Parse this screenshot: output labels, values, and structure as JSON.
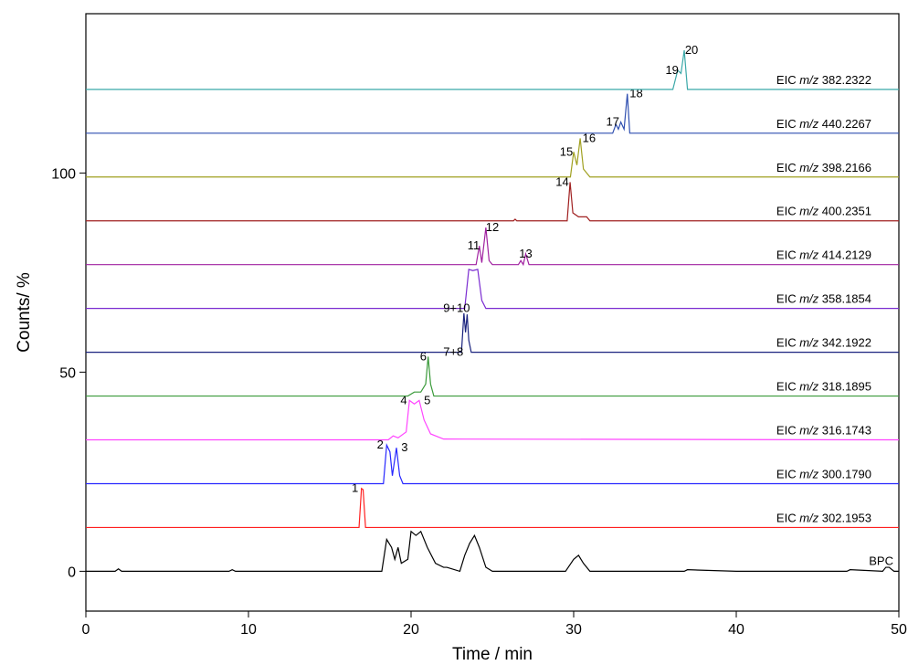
{
  "chart_data": {
    "type": "line",
    "xlabel": "Time / min",
    "ylabel": "Counts/ %",
    "xlim": [
      0,
      50
    ],
    "ylim": [
      -10,
      140
    ],
    "xticks": [
      0,
      10,
      20,
      30,
      40,
      50
    ],
    "yticks": [
      0,
      50,
      100
    ],
    "series": [
      {
        "name": "BPC",
        "color": "#000000",
        "x": [
          0,
          1.8,
          2,
          2.2,
          8.8,
          9,
          9.2,
          18.2,
          18.5,
          18.8,
          19.0,
          19.2,
          19.4,
          19.8,
          20.0,
          20.3,
          20.6,
          21,
          21.5,
          22,
          22.2,
          23,
          23.3,
          23.6,
          23.9,
          24.2,
          24.6,
          25,
          29.5,
          30,
          30.3,
          30.6,
          31,
          36.8,
          37,
          40,
          46.8,
          47,
          49,
          49.2,
          49.4,
          49.7,
          50
        ],
        "values": [
          0,
          0,
          0.6,
          0,
          0,
          0.4,
          0,
          0,
          8,
          6,
          3,
          6,
          2,
          3,
          10,
          9,
          10,
          6,
          2,
          1,
          1,
          0,
          4,
          7,
          9,
          6,
          1,
          0,
          0,
          3,
          4,
          2,
          0,
          0,
          0.4,
          0,
          0,
          0.4,
          0,
          1,
          1,
          0,
          0
        ],
        "peaks": []
      },
      {
        "name": "EIC m/z 302.1953",
        "color": "#ff2020",
        "x": [
          0,
          16.8,
          16.95,
          17.05,
          17.2,
          50
        ],
        "values": [
          11,
          11,
          20.8,
          20.5,
          11,
          11
        ],
        "peaks": [
          {
            "text": "1",
            "x": 16.55
          }
        ]
      },
      {
        "name": "EIC m/z 300.1790",
        "color": "#2828ff",
        "x": [
          0,
          18.3,
          18.5,
          18.7,
          18.85,
          19.1,
          19.3,
          19.5,
          50
        ],
        "values": [
          22,
          22,
          31.7,
          30,
          24,
          31,
          24,
          22,
          22
        ],
        "peaks": [
          {
            "text": "2",
            "x": 18.1
          },
          {
            "text": "3",
            "x": 19.6
          }
        ]
      },
      {
        "name": "EIC m/z 316.1743",
        "color": "#ff44ff",
        "x": [
          0,
          18.6,
          18.9,
          19.2,
          19.7,
          19.9,
          20.2,
          20.5,
          20.8,
          21.2,
          22,
          50
        ],
        "values": [
          33,
          33,
          34,
          33.5,
          35,
          42.9,
          42,
          42.9,
          38,
          34.5,
          33.2,
          33
        ],
        "peaks": [
          {
            "text": "4",
            "x": 19.55
          },
          {
            "text": "5",
            "x": 21.0
          }
        ]
      },
      {
        "name": "EIC m/z 318.1895",
        "color": "#3a9a3a",
        "x": [
          0,
          19.8,
          20.2,
          20.6,
          20.9,
          21.05,
          21.2,
          21.4,
          50
        ],
        "values": [
          44,
          44,
          45,
          45,
          47,
          53.9,
          47,
          44,
          44
        ],
        "peaks": [
          {
            "text": "6",
            "x": 20.75
          }
        ]
      },
      {
        "name": "EIC m/z 342.1922",
        "color": "#1a237e",
        "x": [
          0,
          23.1,
          23.25,
          23.35,
          23.45,
          23.55,
          23.7,
          50
        ],
        "values": [
          55,
          55,
          64.8,
          60,
          64.5,
          58,
          55,
          55
        ],
        "peaks": [
          {
            "text": "7+8",
            "x": 22.6
          }
        ]
      },
      {
        "name": "EIC m/z 358.1854",
        "color": "#7a2bd0",
        "x": [
          0,
          23.3,
          23.55,
          23.8,
          24.1,
          24.35,
          24.6,
          50
        ],
        "values": [
          66,
          66,
          75.8,
          75.5,
          75.8,
          68,
          66,
          66
        ],
        "peaks": [
          {
            "text": "9+10",
            "x": 22.8
          }
        ]
      },
      {
        "name": "EIC m/z 414.2129",
        "color": "#a020a0",
        "x": [
          0,
          24.0,
          24.2,
          24.35,
          24.6,
          24.8,
          25,
          26.6,
          26.75,
          26.9,
          27.05,
          27.25,
          50
        ],
        "values": [
          77,
          77,
          81.7,
          77.5,
          86.3,
          78,
          77,
          77,
          78,
          77,
          79.7,
          77,
          77
        ],
        "peaks": [
          {
            "text": "11",
            "x": 23.85
          },
          {
            "text": "12",
            "x": 25.0
          },
          {
            "text": "13",
            "x": 27.05
          }
        ]
      },
      {
        "name": "EIC m/z 400.2351",
        "color": "#a02020",
        "x": [
          0,
          26.3,
          26.4,
          26.5,
          29.6,
          29.78,
          29.95,
          30.3,
          30.8,
          31,
          50
        ],
        "values": [
          88,
          88,
          88.4,
          88,
          88,
          97.7,
          90,
          89,
          89,
          88,
          88
        ],
        "peaks": [
          {
            "text": "14",
            "x": 29.3
          }
        ]
      },
      {
        "name": "EIC m/z 398.2166",
        "color": "#a0a020",
        "x": [
          0,
          29.8,
          30.0,
          30.2,
          30.4,
          30.6,
          31,
          50
        ],
        "values": [
          99,
          99,
          105.3,
          102,
          108.7,
          101,
          99,
          99
        ],
        "peaks": [
          {
            "text": "15",
            "x": 29.55
          },
          {
            "text": "16",
            "x": 30.95
          }
        ]
      },
      {
        "name": "EIC m/z 440.2267",
        "color": "#2f4fb0",
        "x": [
          0,
          32.4,
          32.6,
          32.75,
          32.9,
          33.1,
          33.3,
          33.45,
          50
        ],
        "values": [
          110,
          110,
          112.2,
          111,
          112.8,
          111,
          119.9,
          110,
          110
        ],
        "peaks": [
          {
            "text": "17",
            "x": 32.4
          },
          {
            "text": "18",
            "x": 33.85
          }
        ]
      },
      {
        "name": "EIC m/z 382.2322",
        "color": "#3aa8a8",
        "x": [
          0,
          36.1,
          36.4,
          36.6,
          36.8,
          37.0,
          50
        ],
        "values": [
          121,
          121,
          125.8,
          125,
          130.8,
          121,
          121
        ],
        "peaks": [
          {
            "text": "19",
            "x": 36.05
          },
          {
            "text": "20",
            "x": 37.25
          }
        ]
      }
    ]
  }
}
